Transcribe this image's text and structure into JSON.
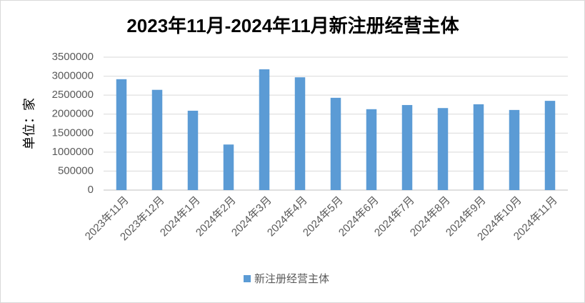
{
  "chart_data": {
    "type": "bar",
    "title": "2023年11月-2024年11月新注册经营主体",
    "y_axis_label": "单位：家",
    "categories": [
      "2023年11月",
      "2023年12月",
      "2024年1月",
      "2024年2月",
      "2024年3月",
      "2024年4月",
      "2024年5月",
      "2024年6月",
      "2024年7月",
      "2024年8月",
      "2024年9月",
      "2024年10月",
      "2024年11月"
    ],
    "series": [
      {
        "name": "新注册经营主体",
        "color": "#5b9bd5",
        "values": [
          2920000,
          2640000,
          2090000,
          1200000,
          3180000,
          2970000,
          2430000,
          2130000,
          2240000,
          2160000,
          2260000,
          2110000,
          2350000
        ]
      }
    ],
    "ylim": [
      0,
      3500000
    ],
    "yticks": [
      0,
      500000,
      1000000,
      1500000,
      2000000,
      2500000,
      3000000,
      3500000
    ],
    "grid": true,
    "legend": "bottom"
  }
}
